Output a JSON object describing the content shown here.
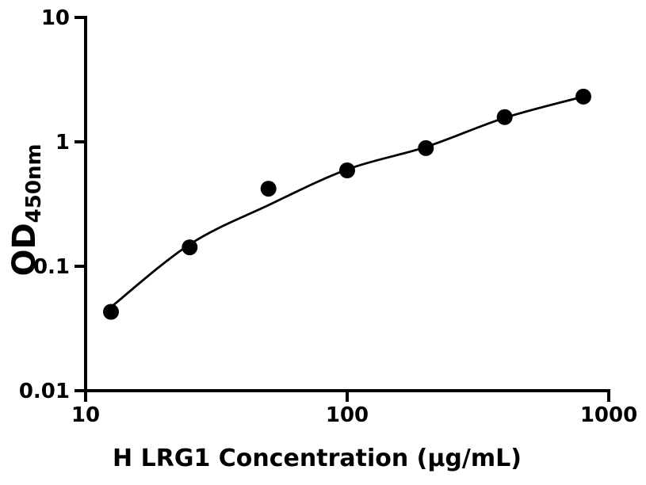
{
  "figure": {
    "background": "#ffffff",
    "foreground": "#000000"
  },
  "chart_data": {
    "type": "scatter",
    "title": "",
    "x_scale": "log",
    "y_scale": "log",
    "xlabel": "H LRG1 Concentration (μg/mL)",
    "ylabel": "OD450nm",
    "ylabel_base": "OD",
    "ylabel_sub": "450nm",
    "xlim": [
      10,
      1000
    ],
    "ylim": [
      0.01,
      10
    ],
    "grid": false,
    "legend": null,
    "x_ticks": [
      {
        "value": 10,
        "label": "10"
      },
      {
        "value": 100,
        "label": "100"
      },
      {
        "value": 1000,
        "label": "1000"
      }
    ],
    "y_ticks": [
      {
        "value": 10,
        "label": "10"
      },
      {
        "value": 1,
        "label": "1"
      },
      {
        "value": 0.1,
        "label": "0.1"
      },
      {
        "value": 0.01,
        "label": "0.01"
      }
    ],
    "series": [
      {
        "marker": {
          "shape": "circle",
          "color": "#000000",
          "radius": 10
        },
        "points": [
          {
            "x": 12.5,
            "y": 0.043
          },
          {
            "x": 25,
            "y": 0.142
          },
          {
            "x": 50,
            "y": 0.42
          },
          {
            "x": 100,
            "y": 0.59
          },
          {
            "x": 200,
            "y": 0.89
          },
          {
            "x": 400,
            "y": 1.58
          },
          {
            "x": 800,
            "y": 2.31
          }
        ]
      }
    ],
    "fit_curve": {
      "color": "#000000",
      "width": 2.8,
      "points": [
        {
          "x": 12.5,
          "y": 0.047
        },
        {
          "x": 25,
          "y": 0.15
        },
        {
          "x": 50,
          "y": 0.31
        },
        {
          "x": 100,
          "y": 0.6
        },
        {
          "x": 200,
          "y": 0.91
        },
        {
          "x": 400,
          "y": 1.56
        },
        {
          "x": 800,
          "y": 2.31
        }
      ]
    }
  }
}
